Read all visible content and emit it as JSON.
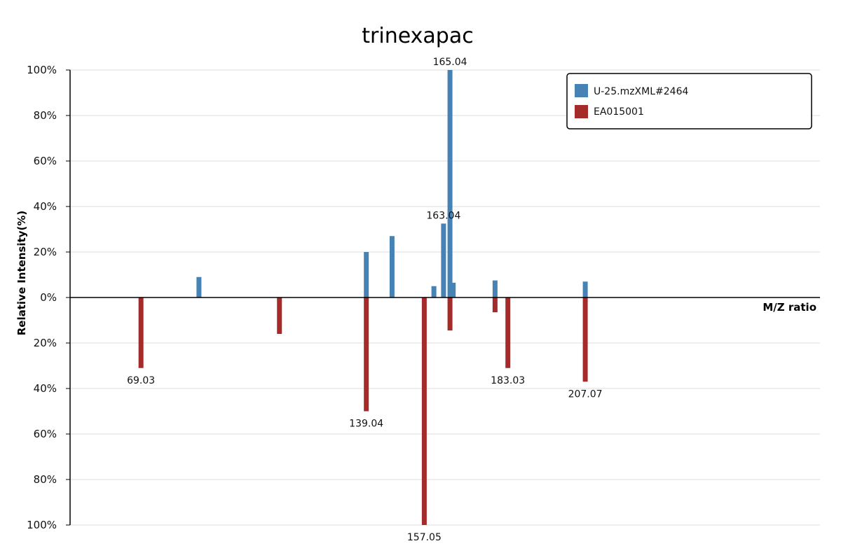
{
  "chart_data": {
    "type": "bar",
    "title": "trinexapac",
    "xlabel": "M/Z ratio",
    "ylabel": "Relative Intensity(%)",
    "ylim": [
      -100,
      100
    ],
    "xlim": [
      47,
      280
    ],
    "y_ticks": [
      {
        "value": 100,
        "label": "100%"
      },
      {
        "value": 80,
        "label": "80%"
      },
      {
        "value": 60,
        "label": "60%"
      },
      {
        "value": 40,
        "label": "40%"
      },
      {
        "value": 20,
        "label": "20%"
      },
      {
        "value": 0,
        "label": "0%"
      },
      {
        "value": -20,
        "label": "20%"
      },
      {
        "value": -40,
        "label": "40%"
      },
      {
        "value": -60,
        "label": "60%"
      },
      {
        "value": -80,
        "label": "80%"
      },
      {
        "value": -100,
        "label": "100%"
      }
    ],
    "grid": true,
    "legend_position": "top-right",
    "series": [
      {
        "name": "U-25.mzXML#2464",
        "color": "#4682b4",
        "direction": "up",
        "peaks": [
          {
            "x": 87.04,
            "y": 9
          },
          {
            "x": 139.04,
            "y": 20
          },
          {
            "x": 147.04,
            "y": 27
          },
          {
            "x": 160.04,
            "y": 5
          },
          {
            "x": 163.04,
            "y": 32.5,
            "label": "163.04"
          },
          {
            "x": 165.04,
            "y": 100,
            "label": "165.04"
          },
          {
            "x": 166.04,
            "y": 6.5
          },
          {
            "x": 179.04,
            "y": 7.5
          },
          {
            "x": 207.07,
            "y": 7
          }
        ]
      },
      {
        "name": "EA015001",
        "color": "#a52a2a",
        "direction": "down",
        "peaks": [
          {
            "x": 69.03,
            "y": 31,
            "label": "69.03"
          },
          {
            "x": 112.05,
            "y": 16
          },
          {
            "x": 139.04,
            "y": 50,
            "label": "139.04"
          },
          {
            "x": 157.05,
            "y": 100,
            "label": "157.05"
          },
          {
            "x": 165.04,
            "y": 14.5
          },
          {
            "x": 179.04,
            "y": 6.5
          },
          {
            "x": 183.03,
            "y": 31,
            "label": "183.03"
          },
          {
            "x": 207.07,
            "y": 37,
            "label": "207.07"
          }
        ]
      }
    ]
  }
}
